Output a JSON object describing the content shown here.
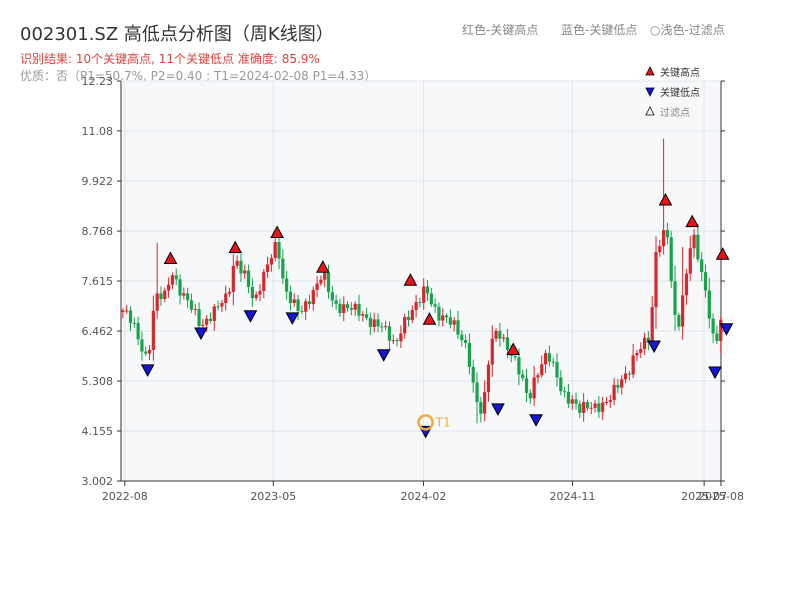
{
  "header": {
    "title": "002301.SZ 高低点分析图（周K线图）",
    "subtitle": "识别结果: 10个关键高点, 11个关键低点  准确度: 85.9%",
    "quality": "优质：否（P1=50.7%, P2=0.40 ; T1=2024-02-08 P1=4.33）",
    "legend_top": [
      "红色-关键高点",
      "蓝色-关键低点",
      "○浅色-过滤点"
    ]
  },
  "colors": {
    "up": "#d9262c",
    "down": "#16a34a",
    "high_marker": "#e8141c",
    "low_marker": "#1616d4",
    "t1_ring": "#f2a93b",
    "plot_bg": "#f6f8fa",
    "grid": "#e3e6ea",
    "axis": "#333333"
  },
  "chart_data": {
    "type": "candlestick",
    "title": "002301.SZ 高低点分析图（周K线图）",
    "x_tick_labels": [
      "2022-08",
      "2023-05",
      "2024-02",
      "2024-11",
      "2025-07",
      "2025-08"
    ],
    "x_tick_dates": [
      "2022-08-01",
      "2023-05-01",
      "2024-02-01",
      "2024-11-01",
      "2025-07-01",
      "2025-08-01"
    ],
    "x_range": [
      "2022-07-25",
      "2025-08-01"
    ],
    "y_ticks": [
      3.002,
      4.155,
      5.308,
      6.462,
      7.615,
      8.768,
      9.922,
      11.08,
      12.23
    ],
    "y_range": [
      3.002,
      12.23
    ],
    "grid": true,
    "legend": {
      "position": "top-right",
      "items": [
        {
          "label": "关键高点",
          "marker": "triangle-up",
          "color": "#e8141c"
        },
        {
          "label": "关键低点",
          "marker": "triangle-down",
          "color": "#1616d4"
        },
        {
          "label": "过滤点",
          "marker": "triangle-up",
          "color": "#ffffff"
        }
      ]
    },
    "price_path": [
      [
        "2022-07-25",
        6.9
      ],
      [
        "2022-08-15",
        6.7
      ],
      [
        "2022-09-05",
        6.0
      ],
      [
        "2022-09-12",
        5.75
      ],
      [
        "2022-09-26",
        7.2
      ],
      [
        "2022-10-17",
        7.3
      ],
      [
        "2022-10-24",
        7.95
      ],
      [
        "2022-11-14",
        7.3
      ],
      [
        "2022-12-05",
        6.9
      ],
      [
        "2022-12-19",
        6.6
      ],
      [
        "2023-01-09",
        6.9
      ],
      [
        "2023-02-06",
        7.2
      ],
      [
        "2023-02-20",
        8.2
      ],
      [
        "2023-03-13",
        7.7
      ],
      [
        "2023-03-27",
        7.0
      ],
      [
        "2023-04-10",
        7.6
      ],
      [
        "2023-04-24",
        8.2
      ],
      [
        "2023-05-08",
        8.55
      ],
      [
        "2023-05-22",
        7.3
      ],
      [
        "2023-06-05",
        7.1
      ],
      [
        "2023-06-19",
        6.95
      ],
      [
        "2023-07-17",
        7.4
      ],
      [
        "2023-07-31",
        7.75
      ],
      [
        "2023-08-21",
        7.1
      ],
      [
        "2023-10-02",
        6.9
      ],
      [
        "2023-11-13",
        6.6
      ],
      [
        "2023-12-11",
        6.1
      ],
      [
        "2023-12-25",
        6.7
      ],
      [
        "2024-01-22",
        7.05
      ],
      [
        "2024-02-05",
        7.45
      ],
      [
        "2024-02-26",
        6.9
      ],
      [
        "2024-03-25",
        6.6
      ],
      [
        "2024-04-22",
        6.1
      ],
      [
        "2024-05-06",
        4.95
      ],
      [
        "2024-05-20",
        4.45
      ],
      [
        "2024-06-03",
        6.15
      ],
      [
        "2024-06-17",
        6.55
      ],
      [
        "2024-07-08",
        6.0
      ],
      [
        "2024-07-29",
        5.4
      ],
      [
        "2024-08-12",
        4.9
      ],
      [
        "2024-08-26",
        5.5
      ],
      [
        "2024-09-16",
        5.9
      ],
      [
        "2024-09-30",
        5.5
      ],
      [
        "2024-10-14",
        5.05
      ],
      [
        "2024-11-04",
        4.85
      ],
      [
        "2024-11-11",
        4.6
      ],
      [
        "2024-12-02",
        4.7
      ],
      [
        "2025-01-06",
        4.85
      ],
      [
        "2025-02-10",
        5.5
      ],
      [
        "2025-02-24",
        6.0
      ],
      [
        "2025-03-24",
        6.25
      ],
      [
        "2025-04-07",
        8.9
      ],
      [
        "2025-04-14",
        8.2
      ],
      [
        "2025-04-21",
        9.3
      ],
      [
        "2025-05-05",
        7.1
      ],
      [
        "2025-05-12",
        6.35
      ],
      [
        "2025-05-26",
        7.4
      ],
      [
        "2025-06-09",
        8.8
      ],
      [
        "2025-06-23",
        8.1
      ],
      [
        "2025-07-07",
        7.1
      ],
      [
        "2025-07-21",
        5.95
      ],
      [
        "2025-08-04",
        7.0
      ]
    ],
    "spikes": [
      {
        "date": "2022-09-26",
        "high": 8.5
      },
      {
        "date": "2024-05-06",
        "low": 4.33
      },
      {
        "date": "2025-04-14",
        "high": 10.9
      },
      {
        "date": "2025-05-19",
        "high": 8.4
      }
    ],
    "key_highs": [
      {
        "date": "2022-10-24",
        "price": 7.95
      },
      {
        "date": "2023-02-20",
        "price": 8.2
      },
      {
        "date": "2023-05-08",
        "price": 8.55
      },
      {
        "date": "2023-07-31",
        "price": 7.75
      },
      {
        "date": "2024-01-08",
        "price": 7.45
      },
      {
        "date": "2024-02-12",
        "price": 6.55
      },
      {
        "date": "2024-07-15",
        "price": 5.85
      },
      {
        "date": "2025-04-21",
        "price": 9.3
      },
      {
        "date": "2025-06-09",
        "price": 8.8
      },
      {
        "date": "2025-08-04",
        "price": 8.05
      }
    ],
    "key_lows": [
      {
        "date": "2022-09-12",
        "price": 5.75
      },
      {
        "date": "2022-12-19",
        "price": 6.6
      },
      {
        "date": "2023-03-20",
        "price": 7.0
      },
      {
        "date": "2023-06-05",
        "price": 6.95
      },
      {
        "date": "2023-11-20",
        "price": 6.1
      },
      {
        "date": "2024-02-05",
        "price": 4.33
      },
      {
        "date": "2024-06-17",
        "price": 4.85
      },
      {
        "date": "2024-08-26",
        "price": 4.6
      },
      {
        "date": "2025-03-31",
        "price": 6.3
      },
      {
        "date": "2025-07-21",
        "price": 5.7
      },
      {
        "date": "2025-08-11",
        "price": 6.7
      }
    ],
    "annotations": [
      {
        "label": "T1",
        "date": "2024-02-05",
        "price": 4.33
      }
    ]
  }
}
